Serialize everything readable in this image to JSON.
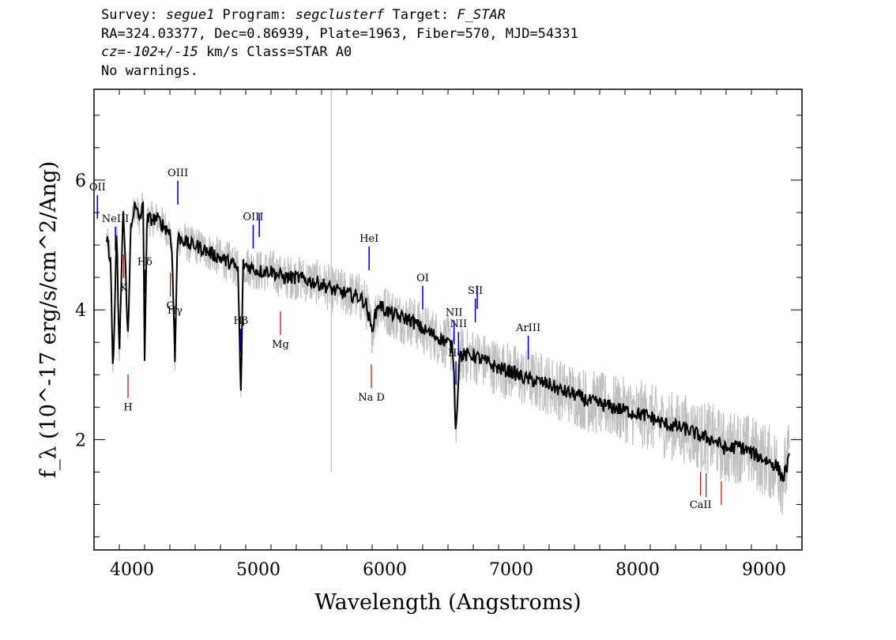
{
  "header": {
    "line1": {
      "survey_label": "Survey: ",
      "survey": "segue1",
      "program_label": " Program: ",
      "program": "segclusterf",
      "target_label": " Target: ",
      "target": "F_STAR"
    },
    "line2": "RA=324.03377, Dec=0.86939, Plate=1963, Fiber=570, MJD=54331",
    "line3": {
      "cz": "cz=-102+/-15",
      "rest": " km/s Class=STAR A0"
    },
    "line4": "No warnings."
  },
  "colors": {
    "flux": "#000000",
    "error_band": "#c0c0c0",
    "emission": "#0000ee",
    "absorption": "#cc0000",
    "axes": "#000000"
  },
  "chart_data": {
    "type": "line",
    "title": "",
    "xlabel": "Wavelength (Angstroms)",
    "ylabel": "f_λ (10^-17 erg/s/cm^2/Ang)",
    "xlim": [
      3700,
      9300
    ],
    "ylim": [
      0.3,
      7.4
    ],
    "x_ticks": [
      4000,
      5000,
      6000,
      7000,
      8000,
      9000
    ],
    "y_ticks": [
      2,
      4,
      6
    ],
    "grid": false,
    "legend": "none",
    "series": [
      {
        "smoothed_flux": [
          [
            3800,
            5.1
          ],
          [
            3830,
            4.8
          ],
          [
            3850,
            3.0
          ],
          [
            3880,
            5.2
          ],
          [
            3900,
            3.2
          ],
          [
            3930,
            5.6
          ],
          [
            3950,
            4.6
          ],
          [
            3970,
            3.5
          ],
          [
            3990,
            5.3
          ],
          [
            4020,
            5.6
          ],
          [
            4060,
            5.4
          ],
          [
            4090,
            5.6
          ],
          [
            4100,
            3.3
          ],
          [
            4120,
            5.4
          ],
          [
            4160,
            5.4
          ],
          [
            4200,
            5.4
          ],
          [
            4250,
            5.3
          ],
          [
            4300,
            5.2
          ],
          [
            4320,
            4.8
          ],
          [
            4340,
            3.2
          ],
          [
            4360,
            5.1
          ],
          [
            4400,
            5.1
          ],
          [
            4450,
            5.0
          ],
          [
            4500,
            5.0
          ],
          [
            4550,
            4.95
          ],
          [
            4600,
            4.9
          ],
          [
            4650,
            4.85
          ],
          [
            4700,
            4.8
          ],
          [
            4750,
            4.75
          ],
          [
            4800,
            4.7
          ],
          [
            4840,
            4.6
          ],
          [
            4861,
            2.6
          ],
          [
            4880,
            4.7
          ],
          [
            4950,
            4.65
          ],
          [
            5000,
            4.6
          ],
          [
            5100,
            4.6
          ],
          [
            5200,
            4.5
          ],
          [
            5300,
            4.5
          ],
          [
            5400,
            4.45
          ],
          [
            5500,
            4.4
          ],
          [
            5600,
            4.3
          ],
          [
            5700,
            4.25
          ],
          [
            5800,
            4.2
          ],
          [
            5850,
            4.1
          ],
          [
            5895,
            3.7
          ],
          [
            5950,
            4.1
          ],
          [
            6000,
            4.0
          ],
          [
            6100,
            3.9
          ],
          [
            6200,
            3.85
          ],
          [
            6300,
            3.7
          ],
          [
            6400,
            3.6
          ],
          [
            6500,
            3.5
          ],
          [
            6540,
            3.4
          ],
          [
            6563,
            2.1
          ],
          [
            6590,
            3.3
          ],
          [
            6700,
            3.3
          ],
          [
            6800,
            3.2
          ],
          [
            6900,
            3.1
          ],
          [
            7000,
            3.05
          ],
          [
            7100,
            2.95
          ],
          [
            7200,
            2.9
          ],
          [
            7300,
            2.85
          ],
          [
            7400,
            2.75
          ],
          [
            7500,
            2.7
          ],
          [
            7600,
            2.6
          ],
          [
            7700,
            2.55
          ],
          [
            7800,
            2.5
          ],
          [
            7900,
            2.45
          ],
          [
            8000,
            2.4
          ],
          [
            8100,
            2.35
          ],
          [
            8200,
            2.25
          ],
          [
            8300,
            2.2
          ],
          [
            8400,
            2.15
          ],
          [
            8500,
            2.05
          ],
          [
            8600,
            2.0
          ],
          [
            8700,
            1.85
          ],
          [
            8800,
            1.9
          ],
          [
            8900,
            1.8
          ],
          [
            9000,
            1.7
          ],
          [
            9100,
            1.6
          ],
          [
            9150,
            1.4
          ],
          [
            9200,
            1.7
          ]
        ]
      }
    ],
    "emission_lines": [
      {
        "label": "OII",
        "wavelength": 3727
      },
      {
        "label": "NeIII",
        "wavelength": 3869
      },
      {
        "label": "Hδ",
        "wavelength": 4102
      },
      {
        "label": "Hγ",
        "wavelength": 4340
      },
      {
        "label": "OIII",
        "wavelength": 4363
      },
      {
        "label": "Hβ",
        "wavelength": 4861
      },
      {
        "label": "OIII",
        "wavelength": 4959
      },
      {
        "label": "",
        "wavelength": 5007
      },
      {
        "label": "HeI",
        "wavelength": 5876
      },
      {
        "label": "OI",
        "wavelength": 6300
      },
      {
        "label": "NII",
        "wavelength": 6548
      },
      {
        "label": "Hα",
        "wavelength": 6563
      },
      {
        "label": "NII",
        "wavelength": 6583
      },
      {
        "label": "SII",
        "wavelength": 6716
      },
      {
        "label": "",
        "wavelength": 6731
      },
      {
        "label": "ArIII",
        "wavelength": 7135
      }
    ],
    "absorption_lines": [
      {
        "label": "K",
        "wavelength": 3934
      },
      {
        "label": "H",
        "wavelength": 3969
      },
      {
        "label": "G",
        "wavelength": 4304
      },
      {
        "label": "Mg",
        "wavelength": 5175
      },
      {
        "label": "Na D",
        "wavelength": 5894
      },
      {
        "label": "CaII",
        "wavelength": 8498
      },
      {
        "label": "",
        "wavelength": 8542
      },
      {
        "label": "",
        "wavelength": 8662
      }
    ]
  }
}
